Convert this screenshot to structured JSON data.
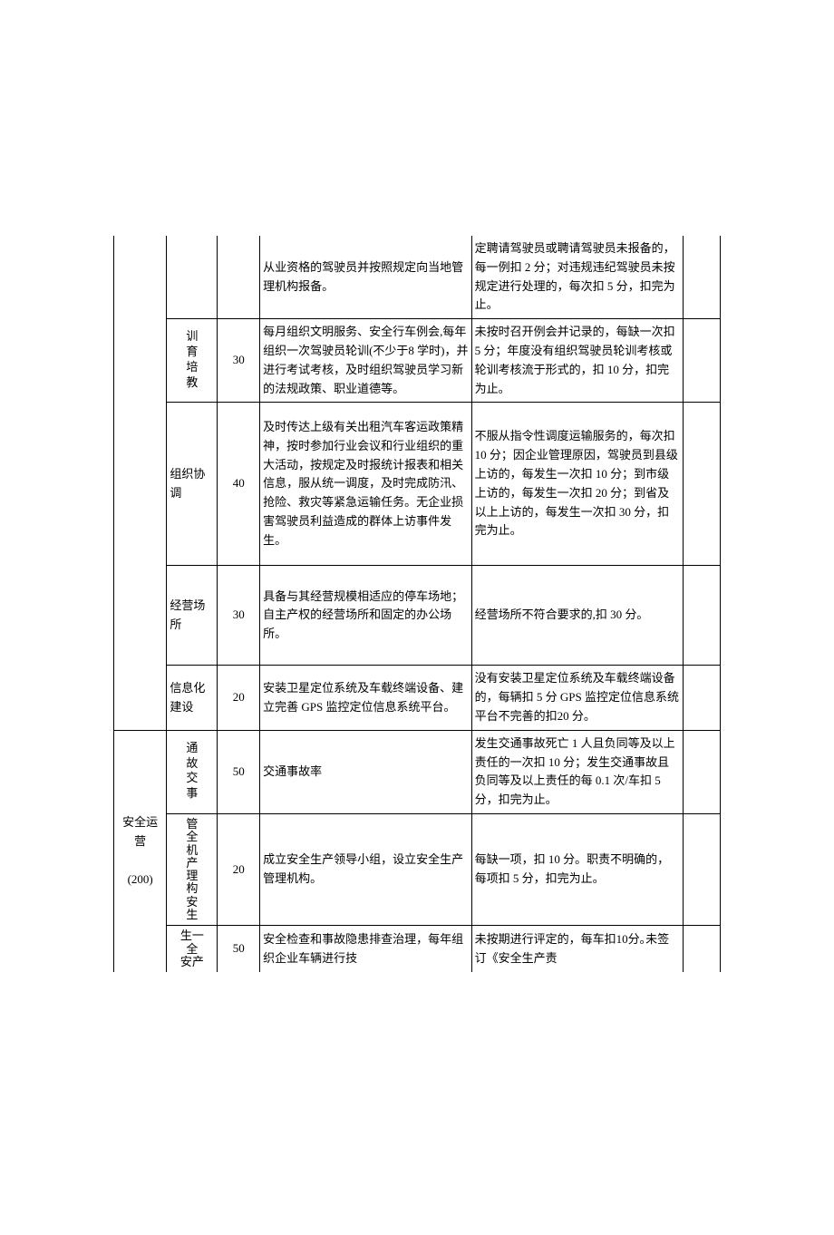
{
  "rows": [
    {
      "sub": "",
      "score": "",
      "content": "从业资格的驾驶员并按照规定向当地管理机构报备。",
      "deduct": "定聘请驾驶员或聘请驾驶员未报备的，每一例扣 2 分；对违规违纪驾驶员未按规定进行处理的，每次扣 5 分，扣完为止。",
      "hasSub": false,
      "subChars": []
    },
    {
      "sub": "训育培教",
      "subChars": [
        "训",
        "育",
        "培",
        "教"
      ],
      "score": "30",
      "content": "每月组织文明服务、安全行车例会,每年组织一次驾驶员轮训(不少于8 学时)，并进行考试考核，及时组织驾驶员学习新的法规政策、职业道德等。",
      "deduct": "未按时召开例会并记录的，每缺一次扣 5 分；年度没有组织驾驶员轮训考核或轮训考核流于形式的，扣 10 分，扣完为止。",
      "hasSub": true
    },
    {
      "sub": "组织协调",
      "subChars": [],
      "score": "40",
      "content": "及时传达上级有关出租汽车客运政策精神，按时参加行业会议和行业组织的重大活动，按规定及时报统计报表和相关信息，服从统一调度，及时完成防汛、抢险、救灾等紧急运输任务。无企业损害驾驶员利益造成的群体上访事件发生。",
      "deduct": "不服从指令性调度运输服务的，每次扣 10 分；因企业管理原因，驾驶员到县级上访的，每发生一次扣 10 分；到市级上访的，每发生一次扣 20 分；到省及以上上访的，每发生一次扣 30 分，扣完为止。",
      "hasSub": true,
      "plainSub": true
    },
    {
      "sub": "经营场所",
      "subChars": [],
      "score": "30",
      "content": "具备与其经营规模相适应的停车场地；自主产权的经营场所和固定的办公场所。",
      "deduct": "经营场所不符合要求的,扣 30 分｡",
      "hasSub": true,
      "plainSub": true
    },
    {
      "sub": "信息化建设",
      "subChars": [],
      "score": "20",
      "content": "安装卫星定位系统及车载终端设备、建立完善 GPS 监控定位信息系统平台。",
      "deduct": "没有安装卫星定位系统及车载终端设备的，每辆扣 5 分 GPS 监控定位信息系统平台不完善的扣20 分。",
      "hasSub": true,
      "plainSub": true
    },
    {
      "category": "安全运营(200)",
      "sub": "通故交事",
      "subChars": [
        "通",
        "故",
        "交",
        "事"
      ],
      "score": "50",
      "content": "交通事故率",
      "deduct": "发生交通事故死亡 1 人且负同等及以上责任的一次扣 10 分；发生交通事故且负同等及以上责任的每 0.1 次/车扣 5 分，扣完为止。",
      "hasSub": true,
      "catRowspan": 3
    },
    {
      "sub": "管全机产理构安生",
      "subChars": [
        "管",
        "全",
        "机",
        "产",
        "理",
        "构",
        "安",
        "生"
      ],
      "score": "20",
      "content": "成立安全生产领导小组，设立安全生产管理机构。",
      "deduct": "每缺一项，扣 10 分。职责不明确的，每项扣 5 分，扣完为止。",
      "hasSub": true
    },
    {
      "sub": "生一全安产",
      "subChars": [
        "生",
        "一",
        "全",
        "安",
        "产"
      ],
      "score": "50",
      "content": "安全检查和事故隐患排查治理，每年组织企业车辆进行技",
      "deduct": "未按期进行评定的，每车扣10分｡未签订《安全生产责",
      "hasSub": true
    }
  ]
}
